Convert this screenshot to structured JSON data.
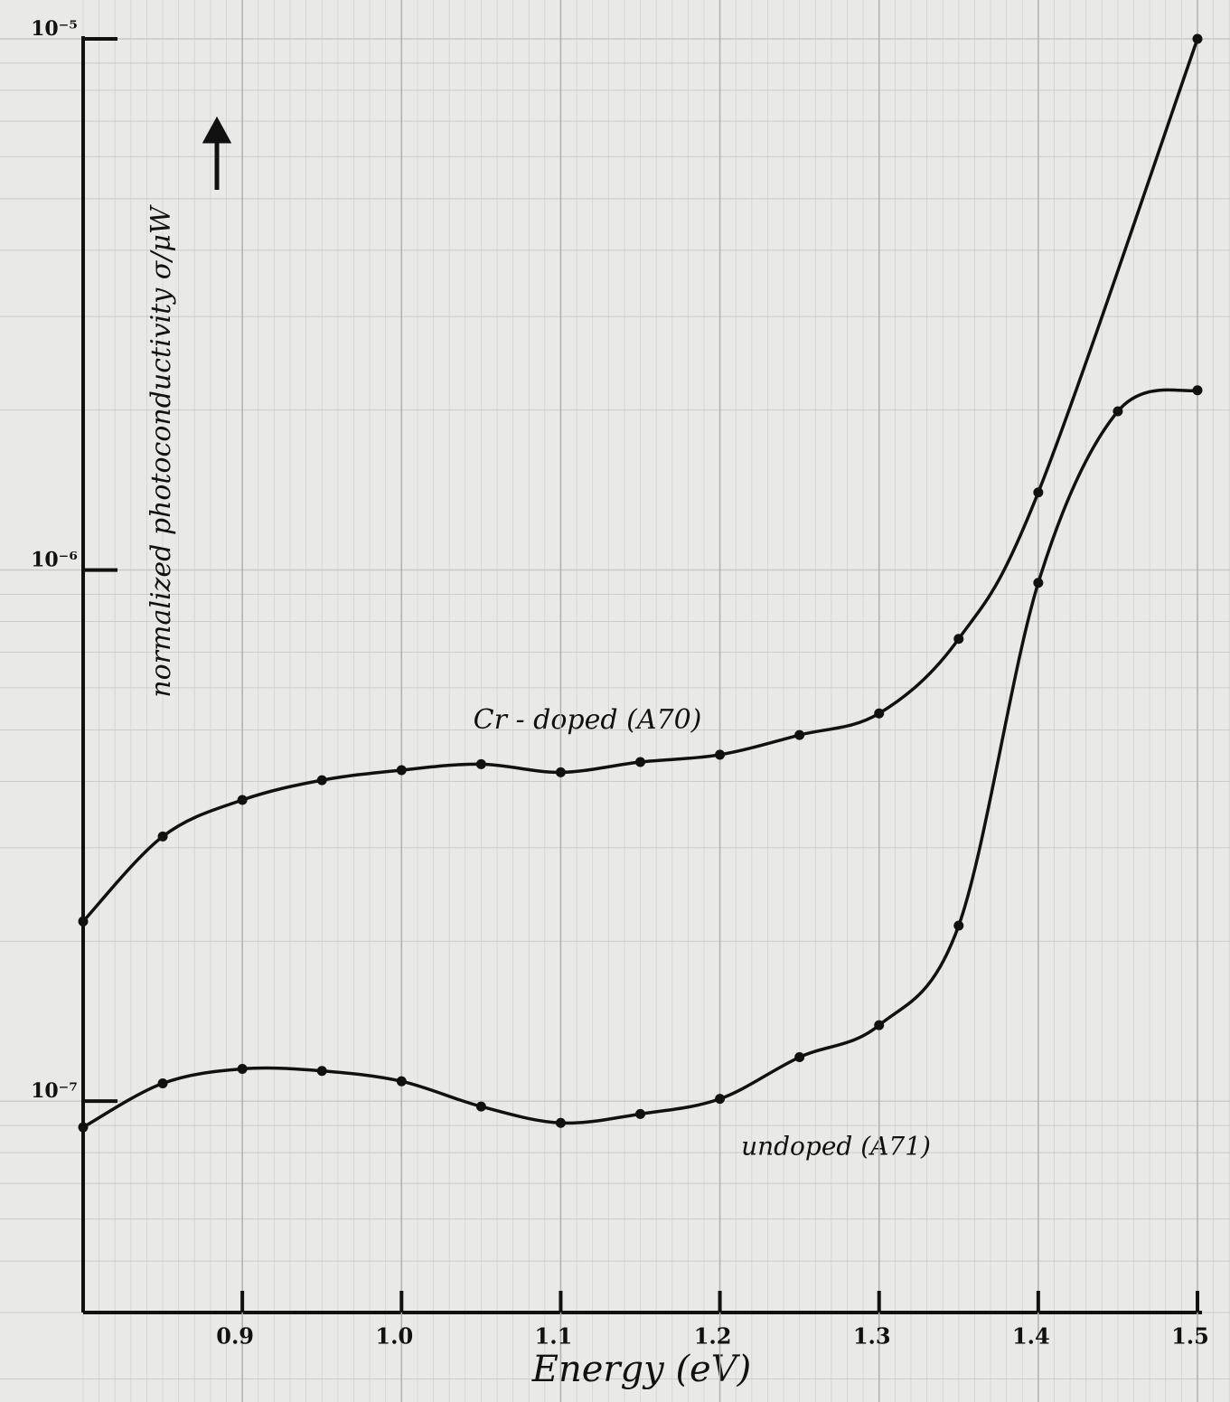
{
  "chart_data": {
    "type": "line",
    "x_label": "Energy (eV)",
    "y_label": "normalized photoconductivity σ/μW",
    "log_y": true,
    "grid": true,
    "xlim": [
      0.8,
      1.5
    ],
    "xticks": [
      0.9,
      {
        "value": 1,
        "label": "1.0"
      },
      1.1,
      1.2,
      1.3,
      1.4,
      1.5
    ],
    "ylim": [
      4e-08,
      1e-05
    ],
    "yticks": [
      {
        "value": 1e-07,
        "label": "10⁻⁷"
      },
      {
        "value": 1e-06,
        "label": "10⁻⁶"
      },
      {
        "value": 1e-05,
        "label": "10⁻⁵"
      }
    ],
    "annotations": [
      "Cr - doped (A70)",
      "undoped (A71)"
    ],
    "series": [
      {
        "name": "Cr - doped (A70)",
        "color": "#111111",
        "x": [
          0.8,
          0.85,
          0.9,
          0.95,
          1.0,
          1.05,
          1.1,
          1.15,
          1.2,
          1.25,
          1.3,
          1.35,
          1.4,
          1.5
        ],
        "values": [
          2.18e-07,
          3.15e-07,
          3.69e-07,
          4.02e-07,
          4.2e-07,
          4.31e-07,
          4.16e-07,
          4.35e-07,
          4.49e-07,
          4.89e-07,
          5.37e-07,
          7.42e-07,
          1.4e-06,
          1e-05
        ]
      },
      {
        "name": "undoped (A71)",
        "color": "#111111",
        "x": [
          0.8,
          0.85,
          0.9,
          0.95,
          1.0,
          1.05,
          1.1,
          1.15,
          1.2,
          1.25,
          1.3,
          1.35,
          1.4,
          1.45,
          1.5
        ],
        "values": [
          8.93e-08,
          1.08e-07,
          1.15e-07,
          1.14e-07,
          1.09e-07,
          9.77e-08,
          9.1e-08,
          9.46e-08,
          1.01e-07,
          1.21e-07,
          1.39e-07,
          2.14e-07,
          9.46e-07,
          1.99e-06,
          2.18e-06
        ]
      }
    ]
  }
}
